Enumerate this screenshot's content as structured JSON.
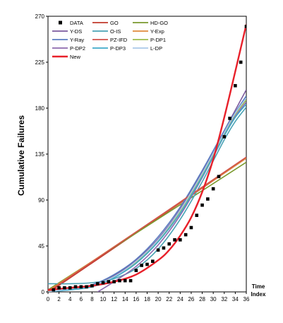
{
  "chart_data": {
    "type": "line",
    "ylabel": "Cumulative Failures",
    "xlabel": "Time Index",
    "xlabel_lines": [
      "Time",
      "Index"
    ],
    "xlim": [
      0,
      36
    ],
    "ylim": [
      0,
      270
    ],
    "xticks": [
      0,
      2,
      4,
      6,
      8,
      10,
      12,
      14,
      16,
      18,
      20,
      22,
      24,
      26,
      28,
      30,
      32,
      34,
      36
    ],
    "yticks": [
      0,
      45,
      90,
      135,
      180,
      225,
      270
    ],
    "grid": false,
    "legend_position": "top-left",
    "data": {
      "name": "DATA",
      "color": "#000000",
      "marker": "square",
      "x": [
        1,
        2,
        3,
        4,
        5,
        6,
        7,
        8,
        9,
        10,
        11,
        12,
        13,
        14,
        15,
        16,
        17,
        18,
        19,
        20,
        21,
        22,
        23,
        24,
        25,
        26,
        27,
        28,
        29,
        30,
        31,
        32,
        33,
        34,
        35,
        36
      ],
      "y": [
        2,
        4,
        4,
        4,
        5,
        5,
        5,
        6,
        8,
        9,
        10,
        10,
        11,
        11,
        11,
        21,
        26,
        27,
        30,
        41,
        43,
        47,
        51,
        51,
        56,
        63,
        75,
        85,
        91,
        101,
        113,
        152,
        170,
        202,
        225,
        260
      ]
    },
    "series": [
      {
        "name": "GO",
        "color": "#c0392b",
        "x": [
          0,
          36
        ],
        "y": [
          -1,
          131
        ]
      },
      {
        "name": "HD-GO",
        "color": "#7a9a2e",
        "x": [
          0,
          36
        ],
        "y": [
          2,
          127
        ]
      },
      {
        "name": "Y-DS",
        "color": "#7c5a9e",
        "x": [
          0,
          4,
          8,
          12,
          16,
          20,
          24,
          28,
          32,
          34,
          36
        ],
        "y": [
          0,
          3,
          6,
          16,
          31,
          52,
          81,
          118,
          158,
          178,
          198
        ]
      },
      {
        "name": "O-IS",
        "color": "#4aa3b5",
        "x": [
          0,
          4,
          8,
          12,
          16,
          20,
          24,
          28,
          32,
          34,
          36
        ],
        "y": [
          8,
          8,
          9,
          13,
          23,
          42,
          71,
          108,
          149,
          167,
          181
        ]
      },
      {
        "name": "Y-Exp",
        "color": "#e08a3c",
        "x": [
          0,
          36
        ],
        "y": [
          1,
          131
        ]
      },
      {
        "name": "Y-Ray",
        "color": "#5b7ec2",
        "x": [
          0,
          4,
          8,
          12,
          16,
          20,
          24,
          28,
          32,
          34,
          36
        ],
        "y": [
          0,
          3,
          7,
          17,
          32,
          54,
          83,
          119,
          158,
          176,
          192
        ]
      },
      {
        "name": "PZ-IFD",
        "color": "#d0504a",
        "x": [
          0,
          36
        ],
        "y": [
          0,
          132
        ]
      },
      {
        "name": "P-DP1",
        "color": "#9cbc4c",
        "x": [
          0,
          4,
          8,
          12,
          16,
          20,
          24,
          28,
          32,
          34,
          36
        ],
        "y": [
          0,
          3,
          6,
          15,
          29,
          50,
          79,
          115,
          155,
          174,
          188
        ]
      },
      {
        "name": "P-DP2",
        "color": "#8d6aae",
        "x": [
          9,
          12,
          16,
          20,
          24,
          28,
          32,
          34,
          36
        ],
        "y": [
          0,
          10,
          25,
          46,
          75,
          112,
          153,
          172,
          186
        ]
      },
      {
        "name": "P-DP3",
        "color": "#3fa9c9",
        "x": [
          0,
          4,
          8,
          12,
          16,
          20,
          24,
          28,
          32,
          34,
          36
        ],
        "y": [
          0,
          2,
          5,
          14,
          28,
          49,
          77,
          113,
          153,
          171,
          184
        ]
      },
      {
        "name": "L-DP",
        "color": "#a9c8e8",
        "x": [
          0,
          4,
          8,
          12,
          16,
          20,
          24,
          28,
          32,
          34,
          36
        ],
        "y": [
          0,
          3,
          6,
          15,
          30,
          51,
          80,
          116,
          156,
          175,
          190
        ]
      },
      {
        "name": "New",
        "color": "#e8202a",
        "x": [
          0,
          4,
          8,
          12,
          16,
          20,
          22,
          24,
          26,
          28,
          30,
          32,
          34,
          36
        ],
        "y": [
          2,
          4,
          6,
          10,
          17,
          31,
          41,
          55,
          73,
          98,
          130,
          171,
          216,
          262
        ]
      }
    ]
  }
}
